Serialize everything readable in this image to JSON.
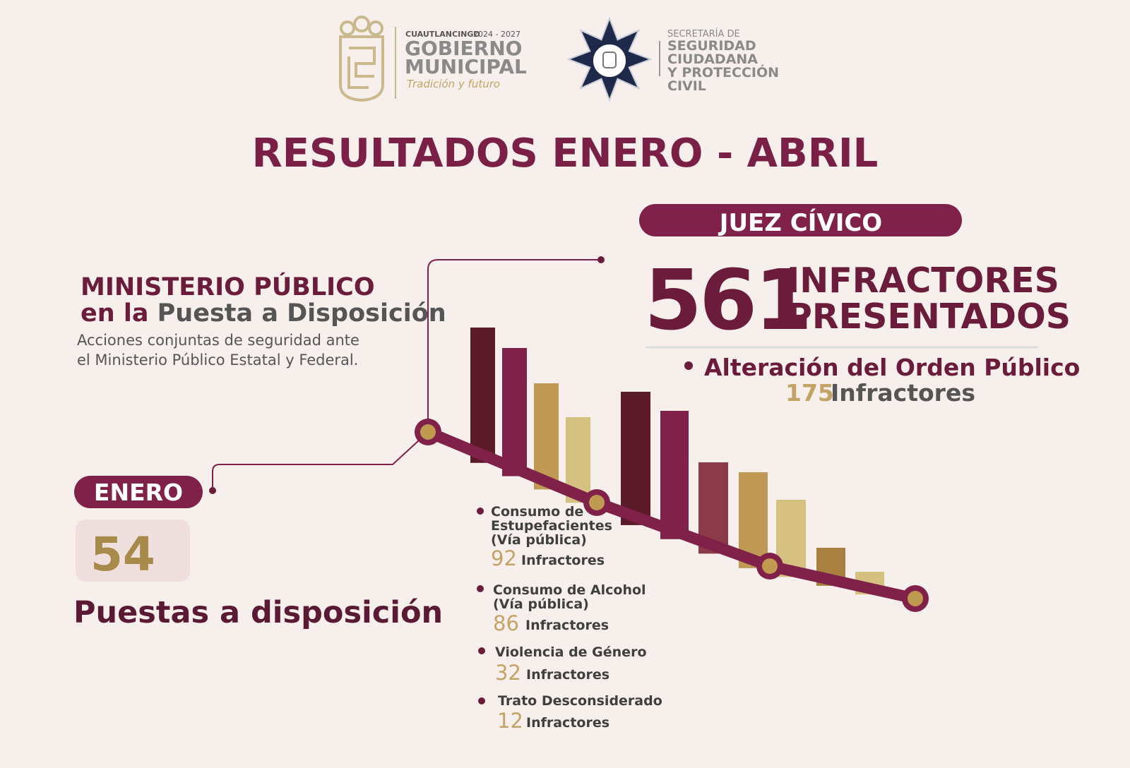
{
  "header": {
    "municipality": {
      "name": "CUAUTLANCINGO",
      "years": "2024 - 2027",
      "title_line1": "GOBIERNO",
      "title_line2": "MUNICIPAL",
      "slogan": "Tradición y futuro"
    },
    "secretariat": {
      "line1": "SECRETARÍA DE",
      "line2": "SEGURIDAD",
      "line3": "CIUDADANA",
      "line4": "Y PROTECCIÓN",
      "line5": "CIVIL"
    }
  },
  "title": "RESULTADOS ENERO - ABRIL",
  "ministerio": {
    "heading_line1": "MINISTERIO PÚBLICO",
    "heading_line2_a": "en la",
    "heading_line2_b": "Puesta a Disposición",
    "description_line1": "Acciones conjuntas de seguridad ante",
    "description_line2": "el Ministerio Público Estatal y Federal.",
    "month": "ENERO",
    "count": 54,
    "count_label": "Puestas a disposición"
  },
  "juez": {
    "badge": "JUEZ CÍVICO",
    "total": 561,
    "total_label_line1": "INFRACTORES",
    "total_label_line2": "PRESENTADOS",
    "items": [
      {
        "label_lines": [
          "Alteración del Orden Público"
        ],
        "count": 175,
        "unit": "Infractores"
      },
      {
        "label_lines": [
          "Consumo de",
          "Estupefacientes",
          "(Vía pública)"
        ],
        "count": 92,
        "unit": "Infractores"
      },
      {
        "label_lines": [
          "Consumo de Alcohol",
          "(Vía pública)"
        ],
        "count": 86,
        "unit": "Infractores"
      },
      {
        "label_lines": [
          "Violencia de Género"
        ],
        "count": 32,
        "unit": "Infractores"
      },
      {
        "label_lines": [
          "Trato Desconsiderado"
        ],
        "count": 12,
        "unit": "Infractores"
      }
    ]
  }
}
